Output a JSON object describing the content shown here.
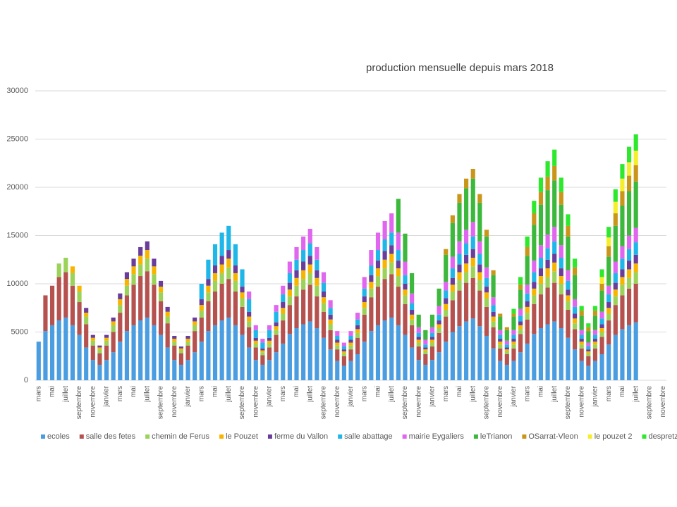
{
  "chart_data": {
    "type": "stacked_bar",
    "title": "production mensuelle depuis mars 2018",
    "categories": [
      "mars",
      null,
      "mai",
      null,
      "juillet",
      null,
      "septembre",
      null,
      "novembre",
      null,
      "janvier",
      null,
      "mars",
      null,
      "mai",
      null,
      "juillet",
      null,
      "septembre",
      null,
      "novembre",
      null,
      "janvier",
      null,
      "mars",
      null,
      "mai",
      null,
      "juillet",
      null,
      "septembre",
      null,
      "novembre",
      null,
      "janvier",
      null,
      "mars",
      null,
      "mai",
      null,
      "juillet",
      null,
      "septembre",
      null,
      "novembre",
      null,
      "janvier",
      null,
      "mars",
      null,
      "mai",
      null,
      "juillet",
      null,
      "septembre",
      null,
      "novembre",
      null,
      "janvier",
      null,
      "mars",
      null,
      "mai",
      null,
      "juillet",
      null,
      "septembre",
      null,
      "novembre",
      null,
      "janvier",
      null,
      "mars",
      null,
      "mai",
      null,
      "juillet",
      null,
      "septembre",
      null,
      "novembre",
      null,
      "janvier",
      null,
      "mars",
      null,
      "mai",
      null,
      "juillet",
      null,
      "septembre",
      null,
      "novembre"
    ],
    "ylim": [
      0,
      30000
    ],
    "yticks": [
      0,
      5000,
      10000,
      15000,
      20000,
      25000,
      30000
    ],
    "grid": true,
    "legend": "bottom",
    "series": [
      {
        "name": "ecoles",
        "color": "#4a9de0",
        "values": [
          4000,
          5100,
          5700,
          6200,
          6500,
          5700,
          4700,
          3400,
          2100,
          1600,
          2100,
          2900,
          4000,
          5100,
          5700,
          6200,
          6500,
          5700,
          4700,
          3400,
          2100,
          1600,
          2100,
          2900,
          4000,
          5100,
          5700,
          6200,
          6500,
          5700,
          4700,
          3400,
          2100,
          1600,
          2100,
          2900,
          3800,
          4800,
          5400,
          5800,
          6100,
          5400,
          4400,
          3200,
          2000,
          1500,
          2000,
          2700,
          4000,
          5100,
          5700,
          6200,
          6500,
          5700,
          4700,
          3400,
          2100,
          1600,
          2100,
          2900,
          4000,
          5000,
          5600,
          6100,
          6400,
          5600,
          4600,
          3300,
          2000,
          1600,
          2000,
          2900,
          3800,
          4800,
          5400,
          5800,
          6100,
          5400,
          4400,
          3200,
          2000,
          1500,
          2000,
          2700,
          3700,
          4700,
          5300,
          5700,
          6000,
          null,
          null,
          null,
          null
        ]
      },
      {
        "name": "salle des fetes",
        "color": "#b5524f",
        "values": [
          0,
          3700,
          4100,
          4500,
          4700,
          4100,
          3400,
          2400,
          1500,
          1200,
          1500,
          2100,
          3000,
          3700,
          4200,
          4600,
          4800,
          4200,
          3500,
          2500,
          1500,
          1200,
          1500,
          2200,
          2500,
          3100,
          3500,
          3800,
          4000,
          3500,
          2900,
          2100,
          1300,
          1000,
          1300,
          1800,
          2400,
          3000,
          3300,
          3600,
          3800,
          3300,
          2700,
          2000,
          1200,
          1000,
          1200,
          1700,
          2800,
          3500,
          4000,
          4300,
          4500,
          4000,
          3200,
          2300,
          1400,
          1100,
          1400,
          2000,
          2600,
          3300,
          3700,
          4000,
          4200,
          3700,
          3000,
          2200,
          1300,
          1100,
          1300,
          1900,
          2500,
          3100,
          3500,
          3800,
          4000,
          3500,
          2900,
          2100,
          1300,
          1000,
          1300,
          1800,
          2500,
          3100,
          3500,
          3800,
          4000,
          null,
          null,
          null,
          null
        ]
      },
      {
        "name": "chemin de Ferus",
        "color": "#9bd35a",
        "values": [
          0,
          0,
          0,
          1400,
          1500,
          1300,
          1100,
          800,
          500,
          400,
          500,
          700,
          800,
          1000,
          1100,
          1200,
          1300,
          1100,
          900,
          700,
          400,
          300,
          400,
          600,
          700,
          900,
          1100,
          1100,
          1200,
          1100,
          900,
          600,
          400,
          300,
          400,
          500,
          700,
          900,
          1100,
          1100,
          1200,
          1100,
          900,
          600,
          400,
          300,
          400,
          500,
          700,
          900,
          1100,
          1100,
          1200,
          1100,
          900,
          600,
          400,
          300,
          400,
          500,
          700,
          900,
          1100,
          1100,
          1200,
          1100,
          900,
          600,
          400,
          300,
          400,
          500,
          700,
          900,
          1100,
          1100,
          1200,
          1100,
          900,
          600,
          400,
          300,
          400,
          500,
          700,
          900,
          1100,
          1100,
          1200,
          null,
          null,
          null,
          null
        ]
      },
      {
        "name": "le Pouzet",
        "color": "#f7b500",
        "values": [
          0,
          0,
          0,
          0,
          0,
          700,
          600,
          400,
          300,
          200,
          300,
          400,
          600,
          700,
          800,
          900,
          900,
          800,
          600,
          500,
          300,
          200,
          300,
          400,
          600,
          700,
          800,
          900,
          900,
          800,
          600,
          500,
          300,
          200,
          300,
          400,
          600,
          700,
          800,
          900,
          900,
          800,
          600,
          500,
          300,
          200,
          300,
          400,
          600,
          700,
          800,
          900,
          900,
          800,
          600,
          500,
          300,
          200,
          300,
          400,
          600,
          700,
          800,
          900,
          900,
          800,
          600,
          500,
          300,
          200,
          300,
          400,
          600,
          700,
          800,
          900,
          900,
          800,
          600,
          500,
          300,
          200,
          300,
          400,
          600,
          700,
          800,
          900,
          900,
          null,
          null,
          null,
          null
        ]
      },
      {
        "name": "ferme du Vallon",
        "color": "#6a3d9a",
        "values": [
          0,
          0,
          0,
          0,
          0,
          0,
          0,
          500,
          300,
          200,
          300,
          400,
          600,
          700,
          800,
          900,
          900,
          800,
          600,
          500,
          300,
          200,
          300,
          400,
          600,
          700,
          800,
          900,
          900,
          800,
          600,
          500,
          300,
          200,
          300,
          400,
          600,
          700,
          800,
          900,
          900,
          800,
          600,
          500,
          300,
          200,
          300,
          400,
          600,
          700,
          800,
          900,
          900,
          800,
          600,
          500,
          300,
          200,
          300,
          400,
          600,
          700,
          800,
          900,
          900,
          800,
          600,
          500,
          300,
          200,
          300,
          400,
          600,
          700,
          800,
          900,
          900,
          800,
          600,
          500,
          300,
          200,
          300,
          400,
          600,
          700,
          800,
          900,
          900,
          null,
          null,
          null,
          null
        ]
      },
      {
        "name": "salle abattage",
        "color": "#1fb6e8",
        "values": [
          0,
          0,
          0,
          0,
          0,
          0,
          0,
          0,
          0,
          0,
          0,
          0,
          0,
          0,
          0,
          0,
          0,
          0,
          0,
          0,
          0,
          0,
          0,
          0,
          1600,
          2000,
          2200,
          2400,
          2500,
          2200,
          1800,
          1300,
          800,
          600,
          800,
          1100,
          800,
          1000,
          1100,
          1200,
          1300,
          1100,
          900,
          700,
          400,
          300,
          400,
          600,
          800,
          1000,
          1100,
          1200,
          1300,
          1100,
          900,
          700,
          400,
          300,
          400,
          600,
          800,
          1000,
          1100,
          1200,
          1300,
          1100,
          900,
          700,
          400,
          300,
          400,
          600,
          800,
          1000,
          1100,
          1200,
          1300,
          1100,
          900,
          700,
          400,
          300,
          400,
          600,
          800,
          1000,
          1100,
          1200,
          1300,
          null,
          null,
          null,
          null
        ]
      },
      {
        "name": "mairie Eygaliers",
        "color": "#e066f0",
        "values": [
          0,
          0,
          0,
          0,
          0,
          0,
          0,
          0,
          0,
          0,
          0,
          0,
          0,
          0,
          0,
          0,
          0,
          0,
          0,
          0,
          0,
          0,
          0,
          0,
          0,
          0,
          0,
          0,
          0,
          0,
          0,
          800,
          500,
          400,
          500,
          700,
          900,
          1200,
          1300,
          1400,
          1500,
          1300,
          1100,
          800,
          500,
          400,
          500,
          700,
          1200,
          1600,
          1800,
          1900,
          2000,
          1800,
          1400,
          1000,
          600,
          500,
          600,
          900,
          900,
          1200,
          1300,
          1400,
          1500,
          1300,
          1100,
          800,
          500,
          400,
          500,
          700,
          900,
          1200,
          1300,
          1400,
          1500,
          1300,
          1100,
          800,
          500,
          400,
          500,
          700,
          900,
          1200,
          1300,
          1400,
          1500,
          null,
          null,
          null,
          null
        ]
      },
      {
        "name": "leTrianon",
        "color": "#3cb83c",
        "values": [
          0,
          0,
          0,
          0,
          0,
          0,
          0,
          0,
          0,
          0,
          0,
          0,
          0,
          0,
          0,
          0,
          0,
          0,
          0,
          0,
          0,
          0,
          0,
          0,
          0,
          0,
          0,
          0,
          0,
          0,
          0,
          0,
          0,
          0,
          0,
          0,
          0,
          0,
          0,
          0,
          0,
          0,
          0,
          0,
          0,
          0,
          0,
          0,
          0,
          0,
          0,
          0,
          0,
          3500,
          2900,
          2100,
          1300,
          1000,
          1300,
          1800,
          2800,
          3500,
          4000,
          4300,
          4500,
          4000,
          3200,
          2300,
          1400,
          1100,
          1400,
          2000,
          3000,
          3700,
          4200,
          4600,
          4800,
          4200,
          3500,
          2500,
          1500,
          1200,
          1500,
          2200,
          3000,
          3700,
          4200,
          4600,
          4800,
          null,
          null,
          null,
          null
        ]
      },
      {
        "name": "OSarrat-Vleon",
        "color": "#c9961a",
        "values": [
          0,
          0,
          0,
          0,
          0,
          0,
          0,
          0,
          0,
          0,
          0,
          0,
          0,
          0,
          0,
          0,
          0,
          0,
          0,
          0,
          0,
          0,
          0,
          0,
          0,
          0,
          0,
          0,
          0,
          0,
          0,
          0,
          0,
          0,
          0,
          0,
          0,
          0,
          0,
          0,
          0,
          0,
          0,
          0,
          0,
          0,
          0,
          0,
          0,
          0,
          0,
          0,
          0,
          0,
          0,
          0,
          0,
          0,
          0,
          0,
          600,
          800,
          900,
          1000,
          1000,
          900,
          700,
          500,
          300,
          300,
          300,
          500,
          900,
          1200,
          1300,
          1400,
          1500,
          1300,
          1100,
          800,
          500,
          400,
          500,
          700,
          1100,
          1300,
          1500,
          1600,
          1700,
          null,
          null,
          null,
          null
        ]
      },
      {
        "name": "le pouzet 2",
        "color": "#f5ee2a",
        "values": [
          0,
          0,
          0,
          0,
          0,
          0,
          0,
          0,
          0,
          0,
          0,
          0,
          0,
          0,
          0,
          0,
          0,
          0,
          0,
          0,
          0,
          0,
          0,
          0,
          0,
          0,
          0,
          0,
          0,
          0,
          0,
          0,
          0,
          0,
          0,
          0,
          0,
          0,
          0,
          0,
          0,
          0,
          0,
          0,
          0,
          0,
          0,
          0,
          0,
          0,
          0,
          0,
          0,
          0,
          0,
          0,
          0,
          0,
          0,
          0,
          0,
          0,
          0,
          0,
          0,
          0,
          0,
          0,
          0,
          0,
          0,
          0,
          0,
          0,
          0,
          0,
          0,
          0,
          0,
          0,
          0,
          0,
          0,
          700,
          900,
          1200,
          1300,
          1400,
          1500,
          null,
          null,
          null,
          null
        ]
      },
      {
        "name": "despretz",
        "color": "#2ee82e",
        "values": [
          0,
          0,
          0,
          0,
          0,
          0,
          0,
          0,
          0,
          0,
          0,
          0,
          0,
          0,
          0,
          0,
          0,
          0,
          0,
          0,
          0,
          0,
          0,
          0,
          0,
          0,
          0,
          0,
          0,
          0,
          0,
          0,
          0,
          0,
          0,
          0,
          0,
          0,
          0,
          0,
          0,
          0,
          0,
          0,
          0,
          0,
          0,
          0,
          0,
          0,
          0,
          0,
          0,
          0,
          0,
          0,
          0,
          0,
          0,
          0,
          0,
          0,
          0,
          0,
          0,
          0,
          0,
          0,
          0,
          0,
          500,
          800,
          1100,
          1300,
          1500,
          1600,
          1700,
          1500,
          1200,
          900,
          500,
          400,
          500,
          800,
          1100,
          1300,
          1500,
          1600,
          1700,
          null,
          null,
          null,
          null
        ]
      }
    ]
  }
}
